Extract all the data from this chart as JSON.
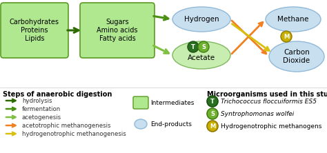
{
  "bg_color": "#ffffff",
  "box1_text": "Carbohydrates\nProteins\nLipids",
  "box2_text": "Sugars\nAmino acids\nFatty acids",
  "box_facecolor": "#b0e890",
  "box_edgecolor": "#5a9a20",
  "ellipse_blue_fc": "#c8dff0",
  "ellipse_blue_ec": "#90b8d8",
  "ellipse_green_fc": "#c8edb0",
  "ellipse_green_ec": "#80b860",
  "arrow_dark_green": "#2d6a00",
  "arrow_mid_green": "#4a9010",
  "arrow_light_green": "#80c040",
  "arrow_orange": "#f08020",
  "arrow_yellow": "#d8c010",
  "micro1_fc": "#2a7020",
  "micro1_ec": "#1a5010",
  "micro1_letter": "T",
  "micro2_fc": "#70b030",
  "micro2_ec": "#408010",
  "micro2_letter": "S",
  "micro3_fc": "#c8b000",
  "micro3_ec": "#907800",
  "micro3_letter": "M",
  "steps": [
    "hydrolysis",
    "fermentation",
    "acetogenesis",
    "acetotrophic methanogenesis",
    "hydrogenotrophic methanogenesis"
  ],
  "step_colors": [
    "#2d6a00",
    "#4a9010",
    "#80c040",
    "#f08020",
    "#d8c010"
  ],
  "micro1_label": "Trichococcus floccuiformis ES5",
  "micro2_label": "Syntrophomonas wolfei",
  "micro3_label": "Hydrogenotrophic methanogens"
}
